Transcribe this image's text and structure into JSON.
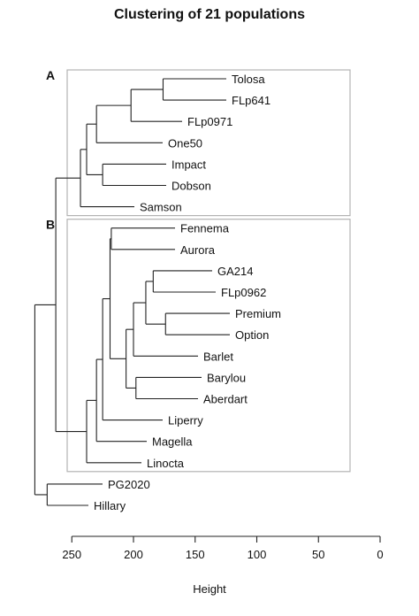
{
  "title": "Clustering of 21 populations",
  "x_axis_label": "Height",
  "x_ticks": [
    "250",
    "200",
    "150",
    "100",
    "50",
    "0"
  ],
  "x_tick_values": [
    250,
    200,
    150,
    100,
    50,
    0
  ],
  "groups": [
    {
      "label": "A",
      "members": [
        "Tolosa",
        "FLp641",
        "FLp0971",
        "One50",
        "Impact",
        "Dobson",
        "Samson"
      ]
    },
    {
      "label": "B",
      "members": [
        "Fennema",
        "Aurora",
        "GA214",
        "FLp0962",
        "Premium",
        "Option",
        "Barlet",
        "Barylou",
        "Aberdart",
        "Liperry",
        "Magella",
        "Linocta"
      ]
    }
  ],
  "leaves": [
    "Tolosa",
    "FLp641",
    "FLp0971",
    "One50",
    "Impact",
    "Dobson",
    "Samson",
    "Fennema",
    "Aurora",
    "GA214",
    "FLp0962",
    "Premium",
    "Option",
    "Barlet",
    "Barylou",
    "Aberdart",
    "Liperry",
    "Magella",
    "Linocta",
    "PG2020",
    "Hillary"
  ],
  "tree": {
    "h": 280,
    "children": [
      {
        "h": 263,
        "children": [
          {
            "h": 243,
            "children": [
              {
                "h": 238,
                "children": [
                  {
                    "h": 230,
                    "children": [
                      {
                        "h": 202,
                        "children": [
                          {
                            "h": 176,
                            "children": [
                              {
                                "leaf": "Tolosa"
                              },
                              {
                                "leaf": "FLp641"
                              }
                            ]
                          },
                          {
                            "leaf": "FLp0971"
                          }
                        ]
                      },
                      {
                        "leaf": "One50"
                      }
                    ]
                  },
                  {
                    "h": 225,
                    "children": [
                      {
                        "leaf": "Impact"
                      },
                      {
                        "leaf": "Dobson"
                      }
                    ]
                  }
                ]
              },
              {
                "leaf": "Samson"
              }
            ]
          },
          {
            "h": 238,
            "children": [
              {
                "h": 230,
                "children": [
                  {
                    "h": 225,
                    "children": [
                      {
                        "h": 219,
                        "children": [
                          {
                            "h": 218,
                            "children": [
                              {
                                "leaf": "Fennema"
                              },
                              {
                                "leaf": "Aurora"
                              }
                            ]
                          },
                          {
                            "h": 206,
                            "children": [
                              {
                                "h": 200,
                                "children": [
                                  {
                                    "h": 190,
                                    "children": [
                                      {
                                        "h": 184,
                                        "children": [
                                          {
                                            "leaf": "GA214"
                                          },
                                          {
                                            "leaf": "FLp0962"
                                          }
                                        ]
                                      },
                                      {
                                        "h": 174,
                                        "children": [
                                          {
                                            "leaf": "Premium"
                                          },
                                          {
                                            "leaf": "Option"
                                          }
                                        ]
                                      }
                                    ]
                                  },
                                  {
                                    "leaf": "Barlet"
                                  }
                                ]
                              },
                              {
                                "h": 198,
                                "children": [
                                  {
                                    "leaf": "Barylou"
                                  },
                                  {
                                    "leaf": "Aberdart"
                                  }
                                ]
                              }
                            ]
                          }
                        ]
                      },
                      {
                        "leaf": "Liperry"
                      }
                    ]
                  },
                  {
                    "leaf": "Magella"
                  }
                ]
              },
              {
                "leaf": "Linocta"
              }
            ]
          }
        ]
      },
      {
        "h": 270,
        "children": [
          {
            "leaf": "PG2020"
          },
          {
            "leaf": "Hillary"
          }
        ]
      }
    ]
  }
}
